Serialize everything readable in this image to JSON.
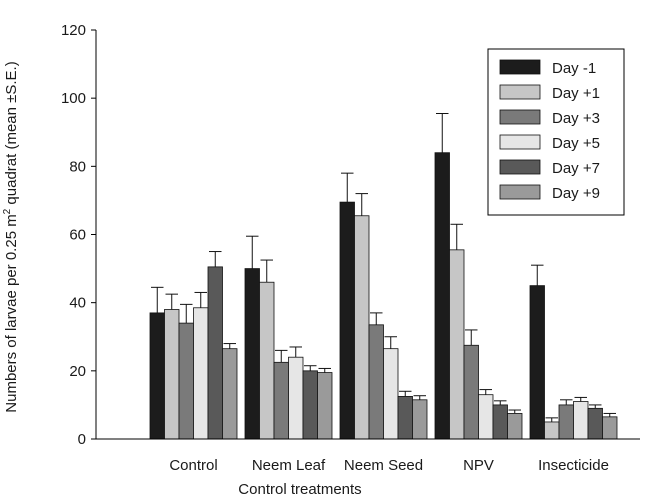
{
  "chart_data": {
    "type": "bar",
    "xlabel": "Control treatments",
    "ylabel": "Numbers of larvae per 0.25 m",
    "ylabel_sup": "2",
    "ylabel_tail": " quadrat (mean ±S.E.)",
    "ylim": [
      0,
      120
    ],
    "yticks": [
      "0",
      "20",
      "40",
      "60",
      "80",
      "100",
      "120"
    ],
    "categories": [
      "Control",
      "Neem Leaf",
      "Neem Seed",
      "NPV",
      "Insecticide"
    ],
    "legend_position": "top-right",
    "series": [
      {
        "name": "Day -1",
        "color": "#1c1c1c",
        "values": [
          37,
          50,
          69.5,
          84,
          45
        ],
        "errors": [
          7.5,
          9.5,
          8.5,
          11.5,
          6
        ]
      },
      {
        "name": "Day +1",
        "color": "#c6c6c6",
        "values": [
          38,
          46,
          65.5,
          55.5,
          5
        ],
        "errors": [
          4.5,
          6.5,
          6.5,
          7.5,
          1.2
        ]
      },
      {
        "name": "Day +3",
        "color": "#7a7a7a",
        "values": [
          34,
          22.5,
          33.5,
          27.5,
          10
        ],
        "errors": [
          5.5,
          3.5,
          3.5,
          4.5,
          1.5
        ]
      },
      {
        "name": "Day +5",
        "color": "#e6e6e6",
        "values": [
          38.5,
          24,
          26.5,
          13,
          11
        ],
        "errors": [
          4.5,
          3,
          3.5,
          1.5,
          1.2
        ]
      },
      {
        "name": "Day +7",
        "color": "#595959",
        "values": [
          50.5,
          20,
          12.5,
          10,
          9
        ],
        "errors": [
          4.5,
          1.5,
          1.5,
          1.2,
          1
        ]
      },
      {
        "name": "Day +9",
        "color": "#9a9a9a",
        "values": [
          26.5,
          19.5,
          11.5,
          7.5,
          6.5
        ],
        "errors": [
          1.5,
          1.2,
          1.2,
          1,
          1
        ]
      }
    ]
  }
}
